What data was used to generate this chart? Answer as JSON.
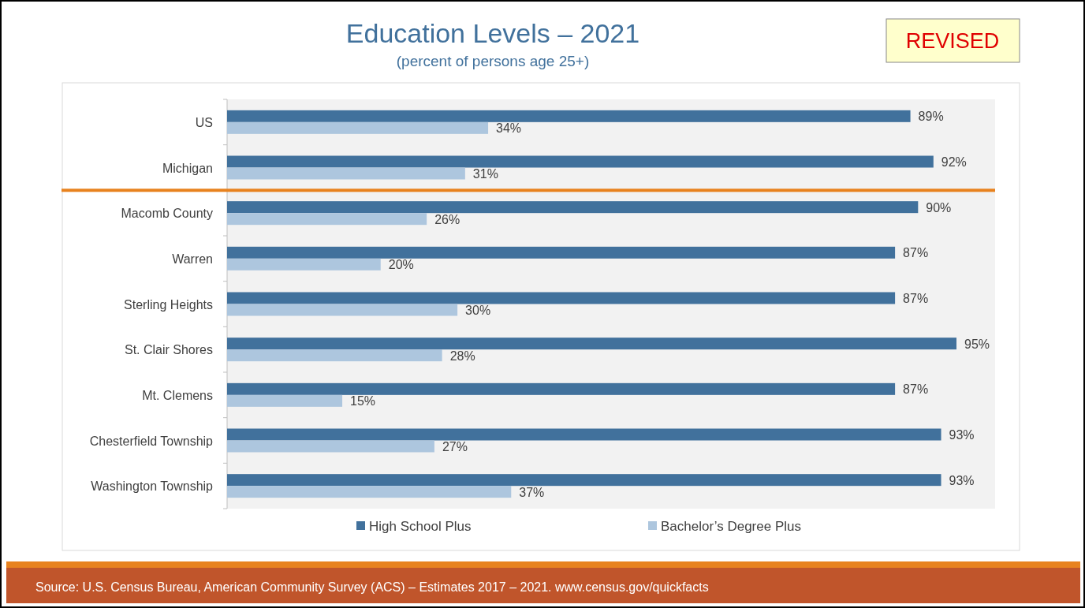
{
  "chart_data": {
    "type": "bar",
    "orientation": "horizontal",
    "title": "Education Levels – 2021",
    "subtitle": "(percent of persons age 25+)",
    "categories": [
      "US",
      "Michigan",
      "Macomb County",
      "Warren",
      "Sterling Heights",
      "St. Clair Shores",
      "Mt. Clemens",
      "Chesterfield Township",
      "Washington Township"
    ],
    "series": [
      {
        "name": "High School Plus",
        "color": "#41719c",
        "values": [
          89,
          92,
          90,
          87,
          87,
          95,
          87,
          93,
          93
        ],
        "value_labels": [
          "89%",
          "92%",
          "90%",
          "87%",
          "87%",
          "95%",
          "87%",
          "93%",
          "93%"
        ]
      },
      {
        "name": "Bachelor’s Degree Plus",
        "color": "#adc6de",
        "values": [
          34,
          31,
          26,
          20,
          30,
          28,
          15,
          27,
          37
        ],
        "value_labels": [
          "34%",
          "31%",
          "26%",
          "20%",
          "30%",
          "28%",
          "15%",
          "27%",
          "37%"
        ]
      }
    ],
    "tick_labels": "y",
    "legend": "bottom",
    "annotations": [
      "REVISED",
      "Source: U.S. Census Bureau, American Community Survey (ACS) – Estimates 2017 – 2021. www.census.gov/quickfacts"
    ]
  }
}
